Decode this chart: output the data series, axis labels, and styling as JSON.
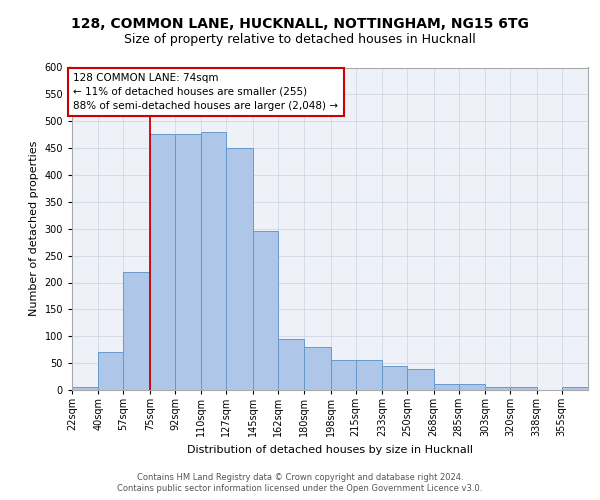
{
  "title1": "128, COMMON LANE, HUCKNALL, NOTTINGHAM, NG15 6TG",
  "title2": "Size of property relative to detached houses in Hucknall",
  "xlabel": "Distribution of detached houses by size in Hucknall",
  "ylabel": "Number of detached properties",
  "annotation_line1": "128 COMMON LANE: 74sqm",
  "annotation_line2": "← 11% of detached houses are smaller (255)",
  "annotation_line3": "88% of semi-detached houses are larger (2,048) →",
  "footer1": "Contains HM Land Registry data © Crown copyright and database right 2024.",
  "footer2": "Contains public sector information licensed under the Open Government Licence v3.0.",
  "bar_edges": [
    22,
    40,
    57,
    75,
    92,
    110,
    127,
    145,
    162,
    180,
    198,
    215,
    233,
    250,
    268,
    285,
    303,
    320,
    338,
    355,
    373
  ],
  "bar_heights": [
    5,
    70,
    220,
    477,
    477,
    480,
    450,
    295,
    95,
    80,
    55,
    55,
    45,
    40,
    12,
    12,
    5,
    5,
    0,
    5
  ],
  "bar_color": "#aec6e8",
  "bar_edge_color": "#6699cc",
  "vline_x": 75,
  "vline_color": "#cc0000",
  "annotation_box_edge_color": "#cc0000",
  "ylim": [
    0,
    600
  ],
  "yticks": [
    0,
    50,
    100,
    150,
    200,
    250,
    300,
    350,
    400,
    450,
    500,
    550,
    600
  ],
  "grid_color": "#d0d8e8",
  "bg_color": "#eef2f8",
  "title1_fontsize": 10,
  "title2_fontsize": 9,
  "annotation_fontsize": 7.5,
  "xlabel_fontsize": 8,
  "ylabel_fontsize": 8,
  "tick_fontsize": 7,
  "footer_fontsize": 6
}
